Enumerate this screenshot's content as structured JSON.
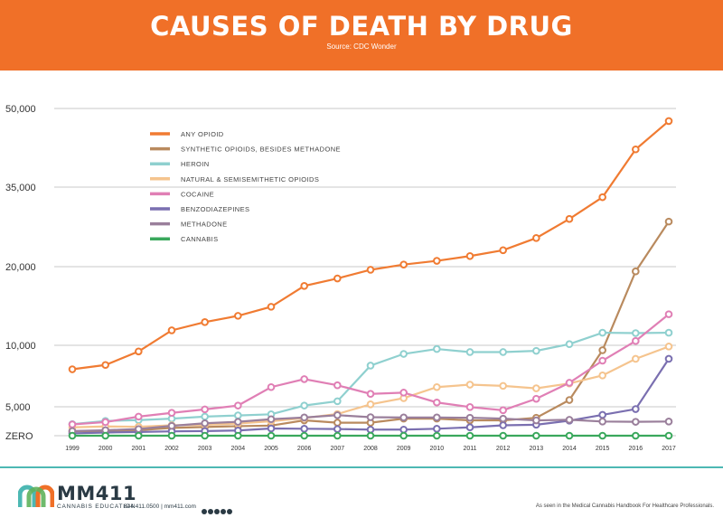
{
  "header": {
    "title": "CAUSES OF DEATH BY DRUG",
    "source": "Source: CDC Wonder",
    "bg_color": "#f07028"
  },
  "chart_data": {
    "type": "line",
    "title": "CAUSES OF DEATH BY DRUG",
    "subtitle": "Source: CDC Wonder",
    "xlabel": "",
    "ylabel": "",
    "x": [
      "1999",
      "2000",
      "2001",
      "2002",
      "2003",
      "2004",
      "2005",
      "2006",
      "2007",
      "2008",
      "2009",
      "2010",
      "2011",
      "2012",
      "2013",
      "2014",
      "2015",
      "2016",
      "2017"
    ],
    "yticks": [
      {
        "value": 0,
        "label": "ZERO"
      },
      {
        "value": 5000,
        "label": "5,000"
      },
      {
        "value": 10000,
        "label": "10,000"
      },
      {
        "value": 20000,
        "label": "20,000"
      },
      {
        "value": 35000,
        "label": "35,000"
      },
      {
        "value": 50000,
        "label": "50,000"
      }
    ],
    "ylim": [
      0,
      52500
    ],
    "grid": true,
    "legend_position": "top-left",
    "series": [
      {
        "name": "ANY OPIOID",
        "color": "#f07b32",
        "values": [
          8050,
          8400,
          9500,
          11900,
          12950,
          13750,
          14900,
          17550,
          18500,
          19600,
          20400,
          21100,
          22000,
          23100,
          25400,
          29000,
          33100,
          42200,
          47600
        ]
      },
      {
        "name": "SYNTHETIC OPIOIDS, BESIDES METHADONE",
        "color": "#b98a5e",
        "values": [
          750,
          800,
          950,
          1350,
          1500,
          1650,
          1750,
          2650,
          2250,
          2250,
          2950,
          2950,
          2650,
          2650,
          3100,
          5550,
          9600,
          19400,
          28500
        ]
      },
      {
        "name": "HEROIN",
        "color": "#8fd0cf",
        "values": [
          2000,
          2550,
          2700,
          2950,
          3300,
          3500,
          3700,
          5100,
          5450,
          8350,
          9300,
          9700,
          9450,
          9450,
          9550,
          10150,
          11600,
          11550,
          11600
        ]
      },
      {
        "name": "NATURAL & SEMISEMITHETIC OPIOIDS",
        "color": "#f5c48e",
        "values": [
          1450,
          1600,
          1550,
          1800,
          1900,
          2100,
          2500,
          3050,
          3750,
          5200,
          5700,
          6600,
          6800,
          6700,
          6500,
          6900,
          7550,
          8900,
          9900
        ]
      },
      {
        "name": "COCAINE",
        "color": "#e07fb5",
        "values": [
          1950,
          2350,
          3300,
          3950,
          4550,
          5100,
          6600,
          7250,
          6750,
          6050,
          6150,
          5350,
          4950,
          4400,
          5650,
          6950,
          8750,
          10550,
          13950
        ]
      },
      {
        "name": "BENZODIAZEPINES",
        "color": "#7a6fb0",
        "values": [
          400,
          550,
          650,
          750,
          800,
          900,
          1250,
          1200,
          1150,
          1050,
          1050,
          1200,
          1450,
          1800,
          1900,
          2600,
          3600,
          4600,
          8900
        ]
      },
      {
        "name": "METHADONE",
        "color": "#9a7f9b",
        "values": [
          800,
          950,
          1150,
          1700,
          2150,
          2400,
          2850,
          3150,
          3550,
          3200,
          3150,
          3150,
          3100,
          2950,
          2650,
          2750,
          2450,
          2400,
          2450
        ]
      },
      {
        "name": "CANNABIS",
        "color": "#3aa85c",
        "values": [
          0,
          0,
          0,
          0,
          0,
          0,
          0,
          0,
          0,
          0,
          0,
          0,
          0,
          0,
          0,
          0,
          0,
          0,
          0
        ]
      }
    ]
  },
  "footer": {
    "brand": "MM411",
    "brand_sub": "CANNABIS EDUCATION",
    "contact": "844.411.0500  |  mm411.com",
    "note": "As seen in the Medical Cannabis Handbook For Healthcare Professionals.",
    "social_icons": [
      "facebook-icon",
      "pinterest-icon",
      "linkedin-icon",
      "twitter-icon",
      "youtube-icon"
    ]
  }
}
